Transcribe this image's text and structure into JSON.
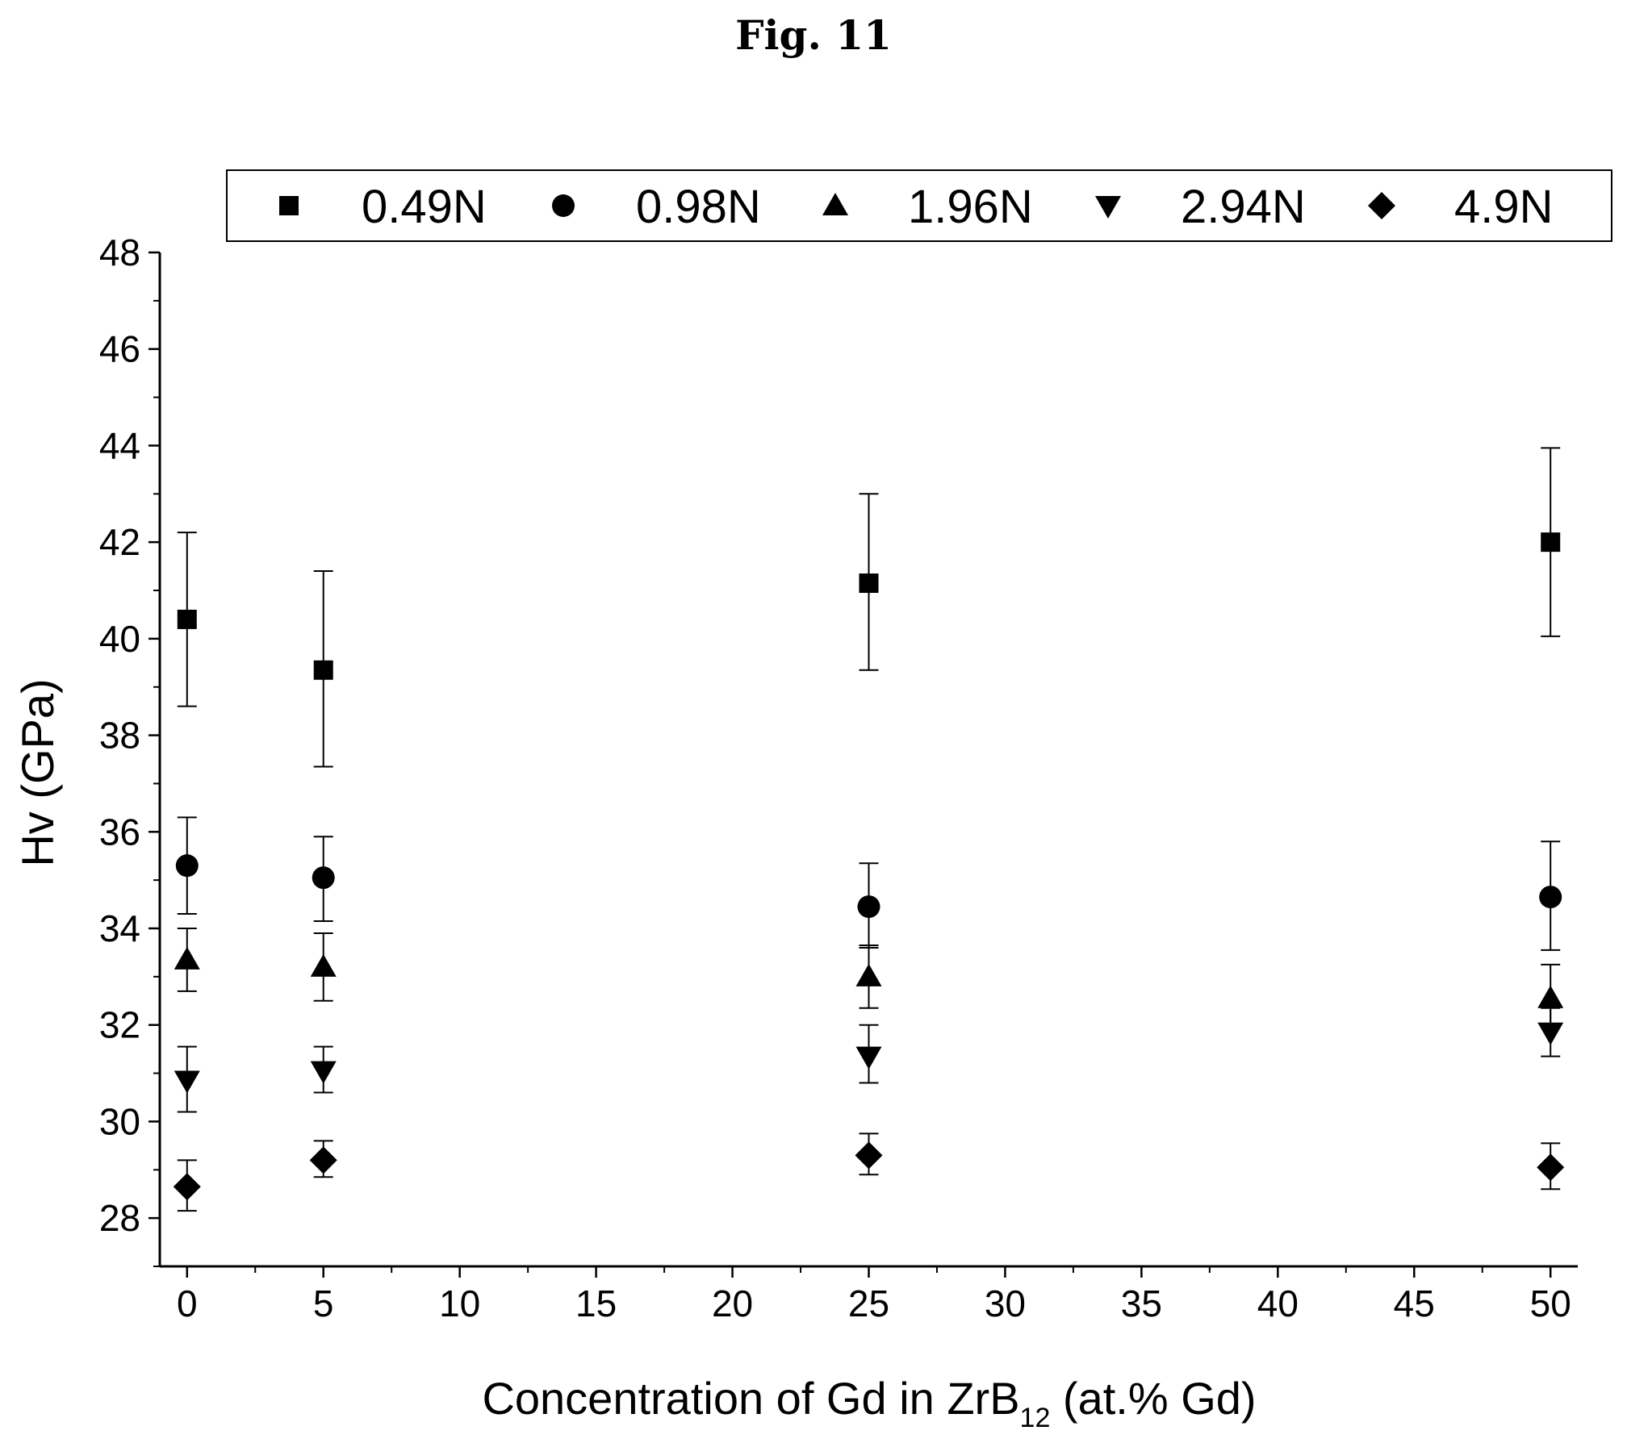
{
  "figure_title": "Fig. 11",
  "chart_data": {
    "type": "scatter",
    "title": "",
    "xlabel_main": "Concentration of Gd in ZrB",
    "xlabel_sub": "12",
    "xlabel_tail": " (at.% Gd)",
    "ylabel": "Hv (GPa)",
    "xlim": [
      -1,
      51
    ],
    "ylim": [
      27,
      48
    ],
    "x_ticks": [
      0,
      5,
      10,
      15,
      20,
      25,
      30,
      35,
      40,
      45,
      50
    ],
    "y_ticks": [
      28,
      30,
      32,
      34,
      36,
      38,
      40,
      42,
      44,
      46,
      48
    ],
    "grid": false,
    "legend_position": "top",
    "x": [
      0,
      5,
      25,
      50
    ],
    "series": [
      {
        "name": "0.49N",
        "marker": "square",
        "values": [
          40.4,
          39.35,
          41.15,
          42.0
        ],
        "err_low": [
          1.8,
          2.0,
          1.8,
          1.95
        ],
        "err_high": [
          1.8,
          2.05,
          1.85,
          1.95
        ]
      },
      {
        "name": "0.98N",
        "marker": "circle",
        "values": [
          35.3,
          35.05,
          34.45,
          34.65
        ],
        "err_low": [
          1.0,
          0.9,
          0.85,
          1.1
        ],
        "err_high": [
          1.0,
          0.85,
          0.9,
          1.15
        ]
      },
      {
        "name": "1.96N",
        "marker": "triangle-up",
        "values": [
          33.35,
          33.2,
          33.0,
          32.55
        ],
        "err_low": [
          0.65,
          0.7,
          0.65,
          0.6
        ],
        "err_high": [
          0.65,
          0.7,
          0.65,
          0.7
        ]
      },
      {
        "name": "2.94N",
        "marker": "triangle-down",
        "values": [
          30.85,
          31.05,
          31.35,
          31.85
        ],
        "err_low": [
          0.65,
          0.45,
          0.55,
          0.5
        ],
        "err_high": [
          0.7,
          0.5,
          0.65,
          0.5
        ]
      },
      {
        "name": "4.9N",
        "marker": "diamond",
        "values": [
          28.65,
          29.2,
          29.3,
          29.05
        ],
        "err_low": [
          0.5,
          0.35,
          0.4,
          0.45
        ],
        "err_high": [
          0.55,
          0.4,
          0.45,
          0.5
        ]
      }
    ]
  }
}
